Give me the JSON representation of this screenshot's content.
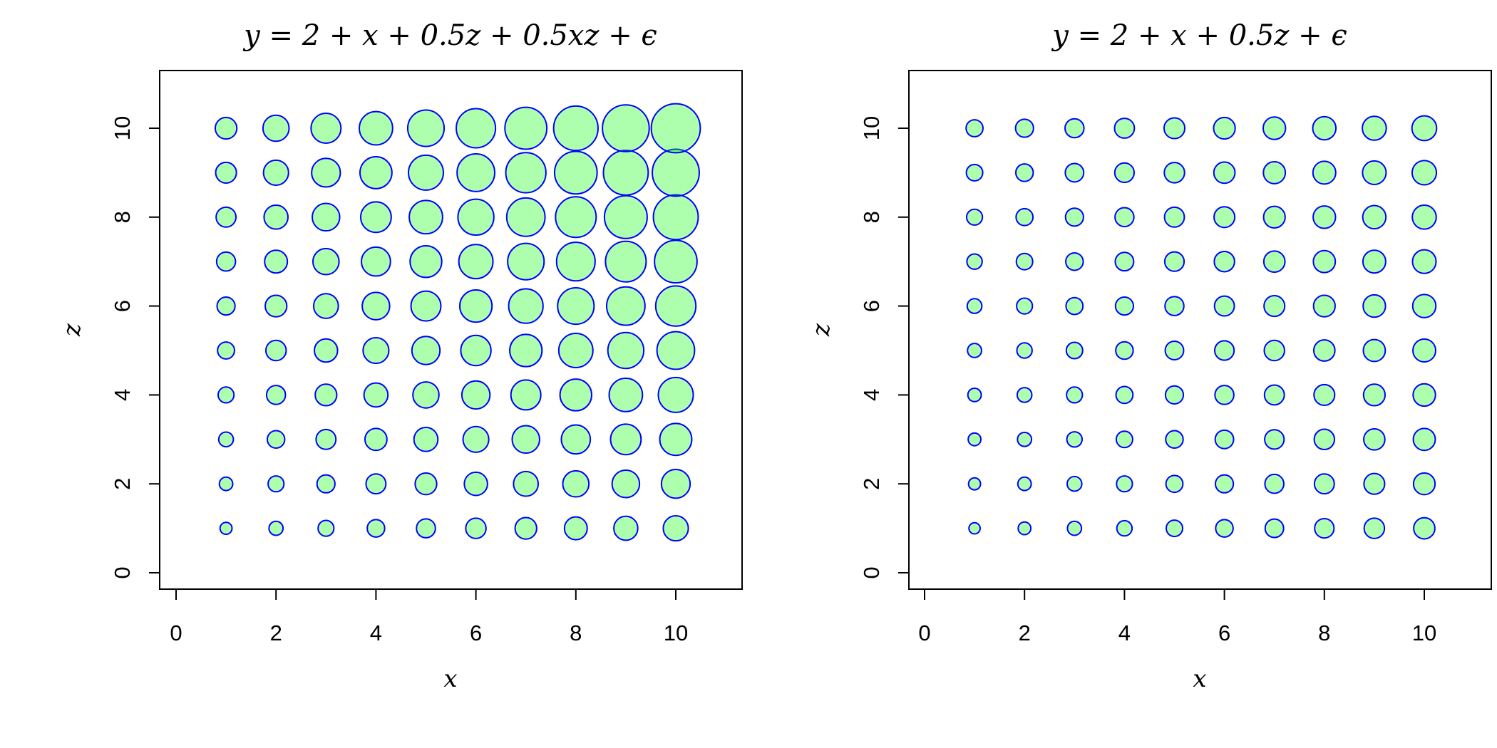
{
  "colors": {
    "fill": "#00ff00",
    "stroke": "#0000ff"
  },
  "chart_data": [
    {
      "type": "scatter",
      "title": "y = 2 + x + 0.5z + 0.5xz + ϵ",
      "xlabel": "x",
      "ylabel": "z",
      "xlim": [
        0,
        11.3
      ],
      "ylim": [
        0,
        11.3
      ],
      "xticks": [
        0,
        2,
        4,
        6,
        8,
        10
      ],
      "yticks": [
        0,
        2,
        4,
        6,
        8,
        10
      ],
      "grid": false,
      "model": {
        "b0": 2,
        "bx": 1,
        "bz": 0.5,
        "bxz": 0.5
      },
      "x": [
        1,
        2,
        3,
        4,
        5,
        6,
        7,
        8,
        9,
        10
      ],
      "z": [
        1,
        2,
        3,
        4,
        5,
        6,
        7,
        8,
        9,
        10
      ]
    },
    {
      "type": "scatter",
      "title": "y = 2 + x + 0.5z + ϵ",
      "xlabel": "x",
      "ylabel": "z",
      "xlim": [
        0,
        11.3
      ],
      "ylim": [
        0,
        11.3
      ],
      "xticks": [
        0,
        2,
        4,
        6,
        8,
        10
      ],
      "yticks": [
        0,
        2,
        4,
        6,
        8,
        10
      ],
      "grid": false,
      "model": {
        "b0": 2,
        "bx": 1,
        "bz": 0.5,
        "bxz": 0
      },
      "x": [
        1,
        2,
        3,
        4,
        5,
        6,
        7,
        8,
        9,
        10
      ],
      "z": [
        1,
        2,
        3,
        4,
        5,
        6,
        7,
        8,
        9,
        10
      ]
    }
  ]
}
